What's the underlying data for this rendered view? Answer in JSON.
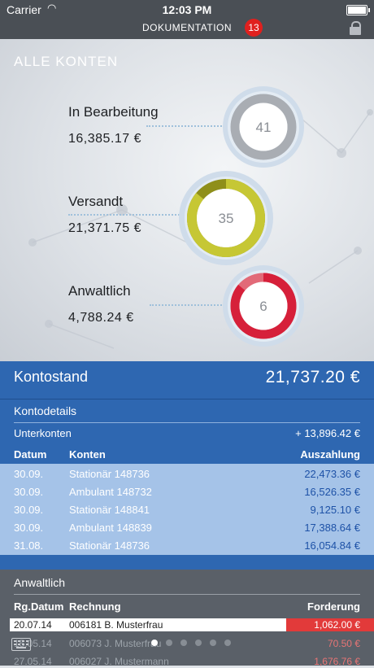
{
  "status_bar": {
    "carrier": "Carrier",
    "time": "12:03 PM"
  },
  "nav": {
    "title": "DOKUMENTATION",
    "badge": "13"
  },
  "hero": {
    "title": "ALLE KONTEN",
    "items": [
      {
        "label": "In Bearbeitung",
        "amount": "16,385.17 €",
        "count": "41",
        "fraction": 0.0,
        "color": "#a9adb3"
      },
      {
        "label": "Versandt",
        "amount": "21,371.75 €",
        "count": "35",
        "fraction": 0.86,
        "color": "#c6c734"
      },
      {
        "label": "Anwaltlich",
        "amount": "4,788.24 €",
        "count": "6",
        "fraction": 0.86,
        "color": "#d6203a"
      }
    ]
  },
  "kontostand": {
    "label": "Kontostand",
    "value": "21,737.20 €"
  },
  "kontodetails": {
    "title": "Kontodetails",
    "unterkonten_label": "Unterkonten",
    "unterkonten_value": "+ 13,896.42 €",
    "columns": [
      "Datum",
      "Konten",
      "Auszahlung"
    ],
    "rows": [
      {
        "datum": "30.09.",
        "konto": "Stationär 148736",
        "betrag": "22,473.36 €"
      },
      {
        "datum": "30.09.",
        "konto": "Ambulant 148732",
        "betrag": "16,526.35 €"
      },
      {
        "datum": "30.09.",
        "konto": "Stationär 148841",
        "betrag": "9,125.10 €"
      },
      {
        "datum": "30.09.",
        "konto": "Ambulant 148839",
        "betrag": "17,388.64 €"
      },
      {
        "datum": "31.08.",
        "konto": "Stationär 148736",
        "betrag": "16,054.84 €"
      }
    ]
  },
  "anwaltlich": {
    "title": "Anwaltlich",
    "columns": [
      "Rg.Datum",
      "Rechnung",
      "Forderung"
    ],
    "rows": [
      {
        "datum": "20.07.14",
        "rechnung": "006181 B. Musterfrau",
        "forderung": "1,062.00 €"
      },
      {
        "datum": "15.05.14",
        "rechnung": "006073 J. Musterfrau",
        "forderung": "70.50 €"
      },
      {
        "datum": "27.05.14",
        "rechnung": "006027 J. Mustermann",
        "forderung": "1,676.76 €"
      }
    ]
  },
  "pager": {
    "count": 6,
    "active": 0
  }
}
